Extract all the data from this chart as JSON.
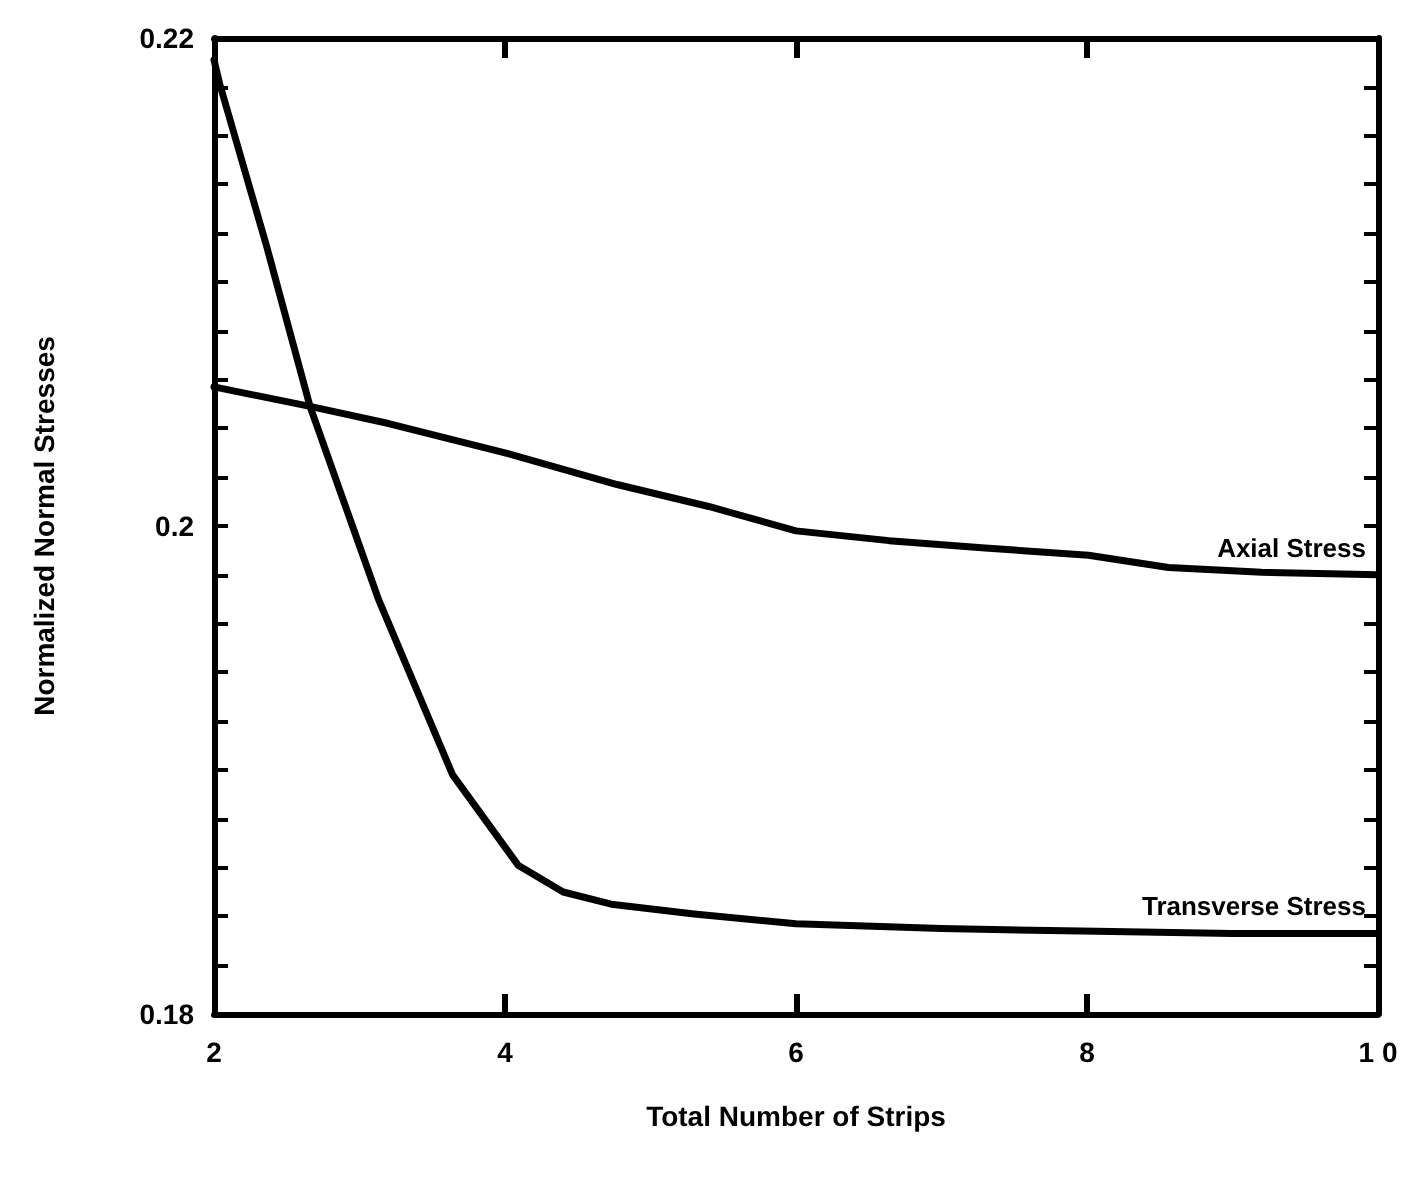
{
  "chart_data": {
    "type": "line",
    "xlabel": "Total Number of Strips",
    "ylabel": "Normalized Normal Stresses",
    "xlim": [
      2,
      10
    ],
    "xticks": [
      2,
      4,
      6,
      8,
      {
        "value": 10,
        "label": "1 0"
      }
    ],
    "ylim": [
      0.18,
      0.22
    ],
    "yticks": [
      0.18,
      0.2,
      0.22
    ],
    "grid": false,
    "legend": "right",
    "marker": "none",
    "line_style": "solid",
    "series": [
      {
        "name": "Axial Stress",
        "color": "#000000",
        "x": [
          2,
          2.66,
          3.2,
          4,
          4.77,
          5.4,
          6,
          6.64,
          7.3,
          8.01,
          8.56,
          9.2,
          10
        ],
        "values": [
          0.2057,
          0.2049,
          0.2042,
          0.203,
          0.2017,
          0.2008,
          0.1998,
          0.1994,
          0.1991,
          0.1988,
          0.1983,
          0.1981,
          0.198
        ]
      },
      {
        "name": "Transverse Stress",
        "color": "#000000",
        "x": [
          2,
          2.04,
          2.36,
          2.66,
          3.13,
          3.64,
          4.09,
          4.4,
          4.73,
          5.3,
          6,
          7,
          7.96,
          9,
          10
        ],
        "values": [
          0.2191,
          0.2181,
          0.2115,
          0.2049,
          0.197,
          0.1898,
          0.1861,
          0.185,
          0.1845,
          0.1841,
          0.1837,
          0.1835,
          0.1834,
          0.1833,
          0.1833
        ]
      }
    ]
  }
}
